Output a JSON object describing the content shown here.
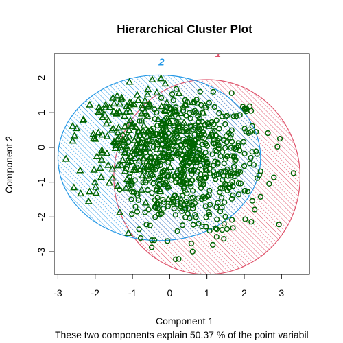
{
  "chart_data": {
    "type": "scatter",
    "title": "Hierarchical Cluster Plot",
    "xlabel": "Component 1",
    "ylabel": "Component 2",
    "subtitle": "These two components explain 50.37 % of the point variabil",
    "xlim": [
      -3.1,
      3.75
    ],
    "ylim": [
      -3.65,
      2.7
    ],
    "x_ticks": [
      -3,
      -2,
      -1,
      0,
      1,
      2,
      3
    ],
    "y_ticks": [
      -3,
      -2,
      -1,
      0,
      1,
      2
    ],
    "grid": false,
    "point_color": "#006400",
    "clusters": [
      {
        "label": "1",
        "color": "#DF536B",
        "marker": "circle",
        "ellipse": {
          "cx": 1.0,
          "cy": -0.85,
          "rx": 2.5,
          "ry": 2.8
        },
        "label_pos": [
          1.3,
          2.6
        ]
      },
      {
        "label": "2",
        "color": "#2297E6",
        "marker": "triangle",
        "ellipse": {
          "cx": -0.28,
          "cy": -0.3,
          "rx": 2.72,
          "ry": 2.38
        },
        "label_pos": [
          -0.22,
          2.35
        ]
      }
    ]
  }
}
